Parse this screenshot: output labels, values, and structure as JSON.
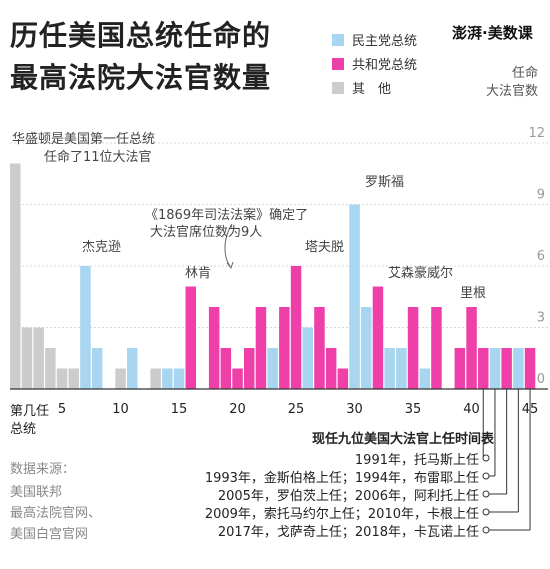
{
  "title": {
    "line1": "历任美国总统任命的",
    "line2": "最高法院大法官数量"
  },
  "logo": "澎湃·美数课",
  "legend": [
    {
      "label": "民主党总统",
      "color": "#a8d5f0"
    },
    {
      "label": "共和党总统",
      "color": "#ee40a8"
    },
    {
      "label": "其　他",
      "color": "#cccccc"
    }
  ],
  "y_title": {
    "line1": "任命",
    "line2": "大法官数"
  },
  "x_title": {
    "line1": "第几任",
    "line2": "总统"
  },
  "annotations": {
    "washington_line1": "华盛顿是美国第一任总统",
    "washington_line2": "任命了11位大法官",
    "act1869_line1": "《1869年司法法案》确定了",
    "act1869_line2": "大法官席位数为9人",
    "jackson": "杰克逊",
    "lincoln": "林肯",
    "taft": "塔夫脱",
    "fdr": "罗斯福",
    "eisenhower": "艾森豪威尔",
    "reagan": "里根"
  },
  "timeline": {
    "title": "现任九位美国大法官上任时间表",
    "rows": [
      "1991年，托马斯上任",
      "1993年，金斯伯格上任；1994年，布雷耶上任",
      "2005年，罗伯茨上任；2006年，阿利托上任",
      "2009年，索托马约尔上任；2010年，卡根上任",
      "2017年，戈萨奇上任；2018年，卡瓦诺上任"
    ]
  },
  "source": {
    "line1": "数据来源：",
    "line2": "美国联邦",
    "line3": "最高法院官网、",
    "line4": "美国白宫官网"
  },
  "chart_data": {
    "type": "bar",
    "x": [
      1,
      2,
      3,
      4,
      5,
      6,
      7,
      8,
      9,
      10,
      11,
      12,
      13,
      14,
      15,
      16,
      17,
      18,
      19,
      20,
      21,
      22,
      23,
      24,
      25,
      26,
      27,
      28,
      29,
      30,
      31,
      32,
      33,
      34,
      35,
      36,
      37,
      38,
      39,
      40,
      41,
      42,
      43,
      44,
      45
    ],
    "values": [
      11,
      3,
      3,
      2,
      1,
      1,
      6,
      2,
      0,
      1,
      2,
      0,
      1,
      1,
      1,
      5,
      0,
      4,
      2,
      1,
      2,
      4,
      2,
      4,
      6,
      3,
      4,
      2,
      1,
      9,
      4,
      5,
      2,
      2,
      4,
      1,
      4,
      0,
      2,
      4,
      2,
      2,
      2,
      2,
      2
    ],
    "party": [
      "O",
      "O",
      "O",
      "O",
      "O",
      "O",
      "D",
      "D",
      "D",
      "O",
      "D",
      "O",
      "O",
      "D",
      "D",
      "R",
      "O",
      "R",
      "R",
      "R",
      "R",
      "R",
      "D",
      "R",
      "R",
      "D",
      "R",
      "R",
      "R",
      "D",
      "D",
      "R",
      "D",
      "D",
      "R",
      "D",
      "R",
      "R",
      "R",
      "R",
      "R",
      "D",
      "R",
      "D",
      "R"
    ],
    "party_colors": {
      "D": "#a8d5f0",
      "R": "#ee40a8",
      "O": "#cccccc"
    },
    "xticks": [
      5,
      10,
      15,
      20,
      25,
      30,
      35,
      40,
      45
    ],
    "yticks": [
      0,
      3,
      6,
      9,
      12
    ],
    "ylim": [
      0,
      12
    ],
    "grid": true
  }
}
